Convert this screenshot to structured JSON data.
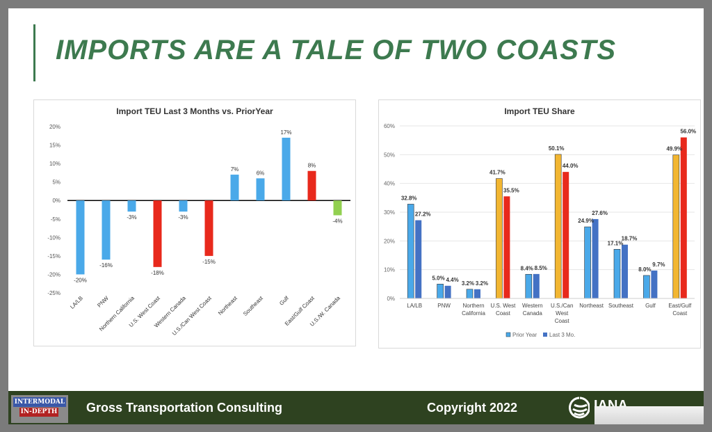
{
  "title": "IMPORTS ARE A TALE OF TWO COASTS",
  "footer": {
    "logo_line1": "INTERMODAL",
    "logo_line2": "IN-DEPTH",
    "company": "Gross Transportation Consulting",
    "copyright": "Copyright 2022",
    "partner": "IANA"
  },
  "colors": {
    "blue": "#4aa9e9",
    "dark_blue": "#4472c4",
    "red": "#e8291c",
    "yellow": "#f2b631",
    "green": "#92d050",
    "title_green": "#3d7a4f"
  },
  "chart_data": [
    {
      "type": "bar",
      "title": "Import TEU Last 3 Months vs. PriorYear",
      "ylim": [
        -25,
        20
      ],
      "yticks": [
        20,
        15,
        10,
        5,
        0,
        -5,
        -10,
        -15,
        -20,
        -25
      ],
      "categories": [
        "LA/LB",
        "PNW",
        "Northern California",
        "U.S. West Coast",
        "Western Canada",
        "U.S./Can West Coast",
        "Northeast",
        "Southeast",
        "Gulf",
        "East/Gulf Coast",
        "U.S./W. Canada"
      ],
      "values": [
        -20,
        -16,
        -3,
        -18,
        -3,
        -15,
        7,
        6,
        17,
        8,
        -4
      ],
      "bar_colors": [
        "blue",
        "blue",
        "blue",
        "red",
        "blue",
        "red",
        "blue",
        "blue",
        "blue",
        "red",
        "green"
      ]
    },
    {
      "type": "bar",
      "title": "Import TEU Share",
      "ylim": [
        0,
        60
      ],
      "yticks": [
        60,
        50,
        40,
        30,
        20,
        10,
        0
      ],
      "categories": [
        [
          "LA/LB"
        ],
        [
          "PNW"
        ],
        [
          "Northern",
          "California"
        ],
        [
          "U.S. West",
          "Coast"
        ],
        [
          "Western",
          "Canada"
        ],
        [
          "U.S./Can",
          "West",
          "Coast"
        ],
        [
          "Northeast"
        ],
        [
          "Southeast"
        ],
        [
          "Gulf"
        ],
        [
          "East/Gulf",
          "Coast"
        ]
      ],
      "series": [
        {
          "name": "Prior Year",
          "values": [
            32.8,
            5.0,
            3.2,
            41.7,
            8.4,
            50.1,
            24.9,
            17.1,
            8.0,
            49.9
          ]
        },
        {
          "name": "Last 3 Mo.",
          "values": [
            27.2,
            4.4,
            3.2,
            35.5,
            8.5,
            44.0,
            27.6,
            18.7,
            9.7,
            56.0
          ]
        }
      ],
      "prior_colors": [
        "blue",
        "blue",
        "blue",
        "yellow",
        "blue",
        "yellow",
        "blue",
        "blue",
        "blue",
        "yellow"
      ],
      "last_colors": [
        "dark_blue",
        "dark_blue",
        "dark_blue",
        "red",
        "dark_blue",
        "red",
        "dark_blue",
        "dark_blue",
        "dark_blue",
        "red"
      ],
      "legend": "bottom"
    }
  ]
}
